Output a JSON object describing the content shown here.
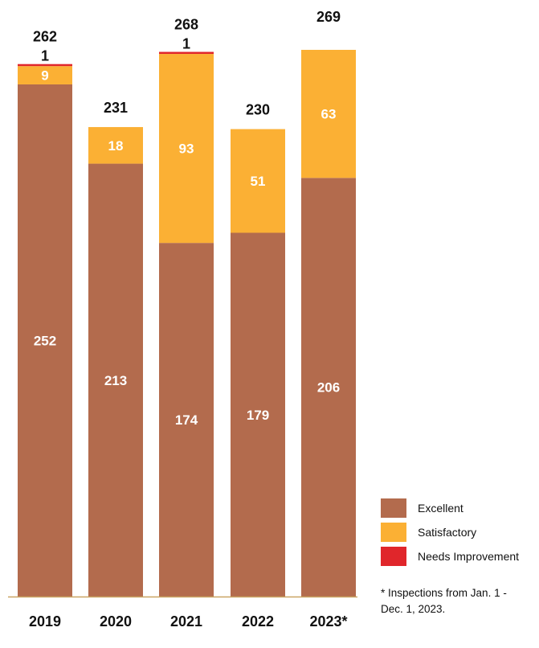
{
  "chart_data": {
    "type": "bar",
    "stacked": true,
    "categories": [
      "2019",
      "2020",
      "2021",
      "2022",
      "2023*"
    ],
    "series": [
      {
        "name": "Excellent",
        "values": [
          252,
          213,
          174,
          179,
          206
        ],
        "color": "#b36b4d"
      },
      {
        "name": "Satisfactory",
        "values": [
          9,
          18,
          93,
          51,
          63
        ],
        "color": "#fbb034"
      },
      {
        "name": "Needs Improvement",
        "values": [
          1,
          0,
          1,
          0,
          0
        ],
        "color": "#e0262b"
      }
    ],
    "totals": [
      262,
      231,
      268,
      230,
      269
    ],
    "title": "",
    "xlabel": "",
    "ylabel": "",
    "ylim": [
      0,
      269
    ],
    "grid": false,
    "legend_position": "bottom-right"
  },
  "footnote": "* Inspections from Jan. 1 -\nDec. 1, 2023."
}
